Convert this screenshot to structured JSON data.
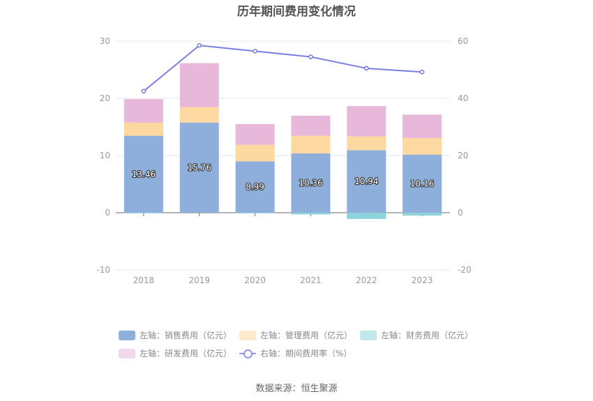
{
  "chart_data": {
    "type": "bar",
    "title": "历年期间费用变化情况",
    "categories": [
      "2018",
      "2019",
      "2020",
      "2021",
      "2022",
      "2023"
    ],
    "stacked": true,
    "series": [
      {
        "name": "左轴：销售费用（亿元）",
        "axis": "left",
        "color": "#8eaedb",
        "values": [
          13.46,
          15.76,
          8.99,
          10.36,
          10.94,
          10.16
        ],
        "labels": [
          "13.46",
          "15.76",
          "8.99",
          "10.36",
          "10.94",
          "10.16"
        ]
      },
      {
        "name": "左轴：管理费用（亿元）",
        "axis": "left",
        "color": "#fdd9a1",
        "values": [
          2.3,
          2.7,
          2.9,
          3.1,
          2.4,
          2.9
        ]
      },
      {
        "name": "左轴：财务费用（亿元）",
        "axis": "left",
        "color": "#8ed3d9",
        "values": [
          -0.1,
          0.0,
          -0.1,
          -0.3,
          -1.1,
          -0.5
        ]
      },
      {
        "name": "左轴：研发费用（亿元）",
        "axis": "left",
        "color": "#e8b8da",
        "values": [
          4.1,
          7.7,
          3.6,
          3.5,
          5.3,
          4.1
        ]
      },
      {
        "name": "右轴：期间费用率（%）",
        "axis": "right",
        "type": "line",
        "color": "#7b7fe3",
        "values": [
          42.5,
          58.5,
          56.5,
          54.5,
          50.5,
          49.2
        ]
      }
    ],
    "y_left": {
      "min": -10,
      "max": 30,
      "ticks": [
        -10,
        0,
        10,
        20,
        30
      ]
    },
    "y_right": {
      "min": -20,
      "max": 60,
      "ticks": [
        -20,
        0,
        20,
        40,
        60
      ]
    },
    "grid": true,
    "legend_position": "bottom"
  },
  "source_text": "数据来源：恒生聚源"
}
